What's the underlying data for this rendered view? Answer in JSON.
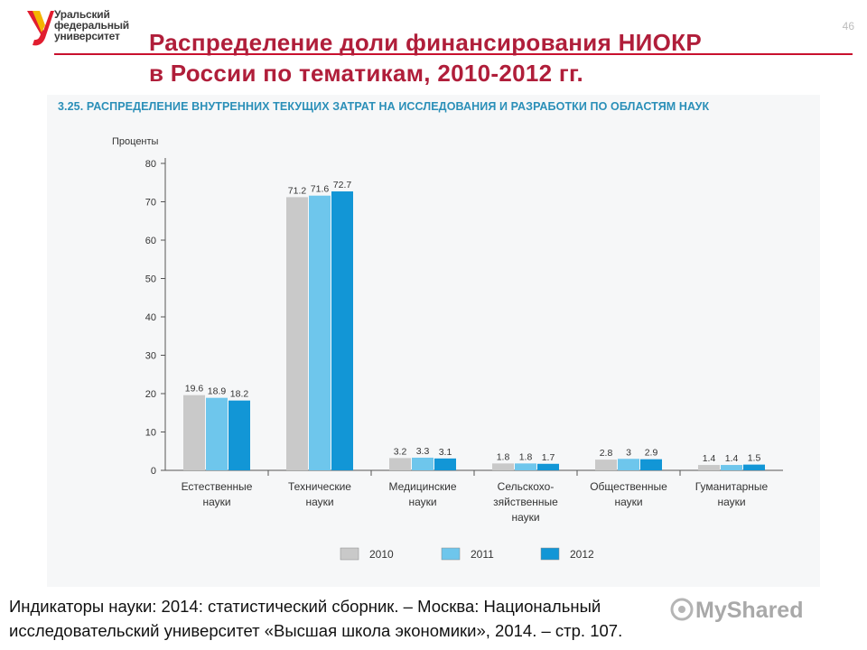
{
  "header": {
    "logo_lines": [
      "Уральский",
      "федеральный",
      "университет"
    ],
    "slide_number": "46",
    "title_lines": [
      "Распределение доли финансирования НИОКР",
      "в России по тематикам, 2010-2012 гг."
    ]
  },
  "figure": {
    "caption": "3.25. РАСПРЕДЕЛЕНИЕ ВНУТРЕННИХ ТЕКУЩИХ ЗАТРАТ НА ИССЛЕДОВАНИЯ И РАЗРАБОТКИ ПО ОБЛАСТЯМ НАУК"
  },
  "chart_data": {
    "type": "bar",
    "title": "",
    "ylabel": "Проценты",
    "ylim": [
      0,
      80
    ],
    "yticks": [
      0,
      10,
      20,
      30,
      40,
      50,
      60,
      70,
      80
    ],
    "categories": [
      [
        "Естественные",
        "науки"
      ],
      [
        "Технические",
        "науки"
      ],
      [
        "Медицинские",
        "науки"
      ],
      [
        "Сельскохо-",
        "зяйственные",
        "науки"
      ],
      [
        "Общественные",
        "науки"
      ],
      [
        "Гуманитарные",
        "науки"
      ]
    ],
    "series": [
      {
        "name": "2010",
        "color": "#c9c9c9",
        "values": [
          19.6,
          71.2,
          3.2,
          1.8,
          2.8,
          1.4
        ]
      },
      {
        "name": "2011",
        "color": "#6ec6ec",
        "values": [
          18.9,
          71.6,
          3.3,
          1.8,
          3.0,
          1.4
        ]
      },
      {
        "name": "2012",
        "color": "#1296d6",
        "values": [
          18.2,
          72.7,
          3.1,
          1.7,
          2.9,
          1.5
        ]
      }
    ],
    "legend": "bottom",
    "grid": false
  },
  "citation_lines": [
    "Индикаторы науки: 2014: статистический сборник. – Москва: Национальный",
    "исследовательский университет «Высшая школа экономики», 2014. – стр. 107."
  ],
  "watermark": "MyShared"
}
